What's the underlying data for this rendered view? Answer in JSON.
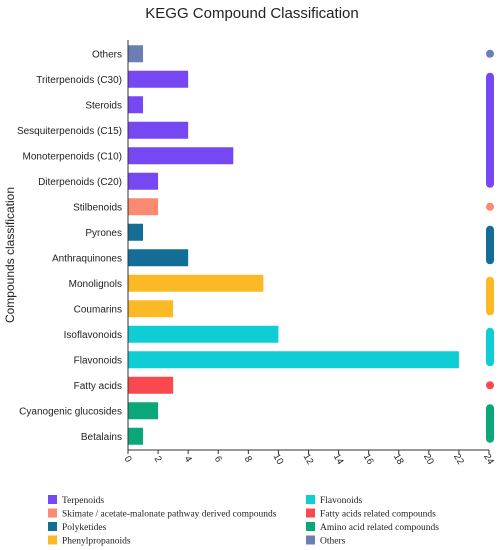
{
  "chart_data": {
    "type": "bar",
    "orientation": "horizontal",
    "title": "KEGG Compound Classification",
    "ylabel": "Compounds classification",
    "xlabel": "",
    "xlim": [
      0,
      24
    ],
    "xticks": [
      "0",
      "2",
      "4",
      "6",
      "8",
      "10",
      "12",
      "14",
      "16",
      "18",
      "20",
      "22",
      "24"
    ],
    "grid": false,
    "legend_position": "bottom",
    "categories": [
      "Others",
      "Triterpenoids (C30)",
      "Steroids",
      "Sesquiterpenoids (C15)",
      "Monoterpenoids (C10)",
      "Diterpenoids (C20)",
      "Stilbenoids",
      "Pyrones",
      "Anthraquinones",
      "Monolignols",
      "Coumarins",
      "Isoflavonoids",
      "Flavonoids",
      "Fatty acids",
      "Cyanogenic glucosides",
      "Betalains"
    ],
    "values": [
      1,
      4,
      1,
      4,
      7,
      2,
      2,
      1,
      4,
      9,
      3,
      10,
      22,
      3,
      2,
      1
    ],
    "groups_of_categories": [
      "Others",
      "Terpenoids",
      "Terpenoids",
      "Terpenoids",
      "Terpenoids",
      "Terpenoids",
      "Skimate / acetate-malonate pathway derived compounds",
      "Polyketides",
      "Polyketides",
      "Phenylpropanoids",
      "Phenylpropanoids",
      "Flavonoids",
      "Flavonoids",
      "Fatty acids related compounds",
      "Amino acid related compounds",
      "Amino acid related compounds"
    ],
    "legend": [
      {
        "name": "Terpenoids",
        "color": "#7648f4"
      },
      {
        "name": "Skimate / acetate-malonate pathway derived compounds",
        "color": "#fb8a72"
      },
      {
        "name": "Polyketides",
        "color": "#136d96"
      },
      {
        "name": "Phenylpropanoids",
        "color": "#fbba25"
      },
      {
        "name": "Flavonoids",
        "color": "#0fcdd4"
      },
      {
        "name": "Fatty acids related compounds",
        "color": "#f9484e"
      },
      {
        "name": "Amino acid related compounds",
        "color": "#0aa77a"
      },
      {
        "name": "Others",
        "color": "#6c7fb4"
      }
    ]
  }
}
